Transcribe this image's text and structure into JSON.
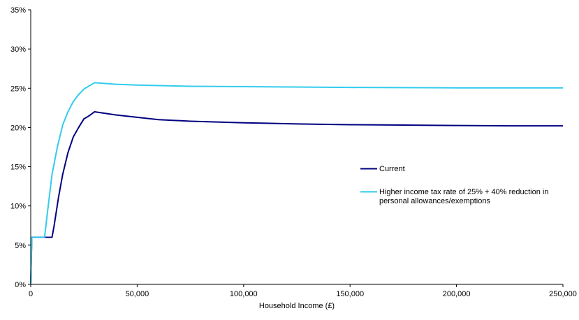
{
  "chart_data": {
    "type": "line",
    "title": "",
    "xlabel": "Household Income (£)",
    "ylabel": "",
    "xlim": [
      0,
      250000
    ],
    "ylim": [
      0,
      35
    ],
    "x_ticks": [
      0,
      50000,
      100000,
      150000,
      200000,
      250000
    ],
    "x_tick_labels": [
      "0",
      "50,000",
      "100,000",
      "150,000",
      "200,000",
      "250,000"
    ],
    "y_ticks": [
      0,
      5,
      10,
      15,
      20,
      25,
      30,
      35
    ],
    "y_tick_labels": [
      "0%",
      "5%",
      "10%",
      "15%",
      "20%",
      "25%",
      "30%",
      "35%"
    ],
    "grid": false,
    "legend_position": "right",
    "series": [
      {
        "name": "Current",
        "color": "#000080",
        "x": [
          0,
          500,
          1000,
          5000,
          10000,
          11000,
          13000,
          15000,
          17500,
          20000,
          22500,
          25000,
          27500,
          30000,
          40000,
          50000,
          60000,
          75000,
          100000,
          125000,
          150000,
          175000,
          200000,
          225000,
          250000
        ],
        "y": [
          0,
          6.0,
          6.0,
          6.0,
          6.0,
          7.5,
          11.0,
          14.0,
          16.8,
          18.8,
          20.0,
          21.1,
          21.5,
          22.0,
          21.6,
          21.3,
          21.0,
          20.8,
          20.6,
          20.45,
          20.35,
          20.3,
          20.25,
          20.2,
          20.2
        ]
      },
      {
        "name": "Higher income tax rate of 25% + 40% reduction in personal allowances/exemptions",
        "color": "#33CCEE",
        "x": [
          0,
          500,
          1000,
          4000,
          6500,
          8000,
          10000,
          12500,
          15000,
          17500,
          20000,
          22500,
          25000,
          27500,
          30000,
          40000,
          50000,
          75000,
          100000,
          150000,
          200000,
          250000
        ],
        "y": [
          0,
          6.0,
          6.0,
          6.0,
          6.0,
          9.5,
          14.0,
          17.5,
          20.3,
          22.0,
          23.3,
          24.2,
          24.9,
          25.3,
          25.7,
          25.5,
          25.4,
          25.25,
          25.2,
          25.1,
          25.05,
          25.05
        ]
      }
    ]
  }
}
